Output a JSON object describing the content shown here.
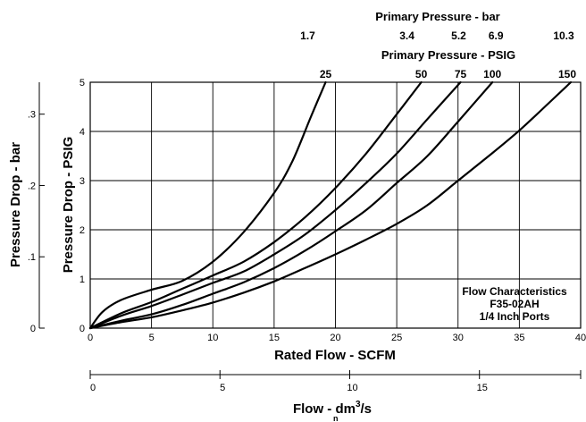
{
  "chart_data": {
    "type": "line",
    "title": "Flow Characteristics",
    "annotation": [
      "Flow Characteristics",
      "F35-02AH",
      "1/4 Inch Ports"
    ],
    "xlabel": "Rated Flow - SCFM",
    "ylabel": "Pressure Drop - PSIG",
    "xlim": [
      0,
      40
    ],
    "ylim": [
      0,
      5
    ],
    "x_ticks": [
      0,
      5,
      10,
      15,
      20,
      25,
      30,
      35,
      40
    ],
    "y_ticks": [
      0,
      1,
      2,
      3,
      4,
      5
    ],
    "grid": true,
    "secondary_y": {
      "label": "Pressure Drop - bar",
      "ticks": [
        {
          "value": 0,
          "label": "0"
        },
        {
          "value": 0.1,
          "label": ".1"
        },
        {
          "value": 0.2,
          "label": ".2"
        },
        {
          "value": 0.3,
          "label": ".3"
        }
      ]
    },
    "secondary_x": {
      "label": "Flow - dm³/s",
      "label_main": "Flow - dm",
      "label_sup": "3",
      "label_tail": "/s",
      "label_sub": "n",
      "ticks": [
        0,
        5,
        10,
        15
      ],
      "range": [
        0,
        18.9
      ]
    },
    "top_axis_psig": {
      "label": "Primary Pressure - PSIG",
      "ticks": [
        "25",
        "50",
        "75",
        "100",
        "150"
      ]
    },
    "top_axis_bar": {
      "label": "Primary Pressure - bar",
      "ticks": [
        "1.7",
        "3.4",
        "5.2",
        "6.9",
        "10.3"
      ]
    },
    "series": [
      {
        "primary_psig": "25",
        "primary_bar": "1.7",
        "x": [
          0,
          1,
          2.5,
          5,
          7.5,
          10,
          12.5,
          15,
          16.5,
          18,
          19.2
        ],
        "y": [
          0,
          0.33,
          0.57,
          0.78,
          0.96,
          1.35,
          1.95,
          2.75,
          3.4,
          4.3,
          5.0
        ]
      },
      {
        "primary_psig": "50",
        "primary_bar": "3.4",
        "x": [
          0,
          2.5,
          5,
          7.5,
          10,
          12.5,
          15,
          17.5,
          20,
          22.5,
          25,
          27
        ],
        "y": [
          0,
          0.3,
          0.53,
          0.8,
          1.07,
          1.35,
          1.75,
          2.25,
          2.85,
          3.55,
          4.35,
          5.0
        ]
      },
      {
        "primary_psig": "75",
        "primary_bar": "5.2",
        "x": [
          0,
          2.5,
          5,
          7.5,
          10,
          12.5,
          15,
          17.5,
          20,
          22.5,
          25,
          27.5,
          30.2
        ],
        "y": [
          0,
          0.25,
          0.45,
          0.68,
          0.92,
          1.15,
          1.5,
          1.9,
          2.4,
          2.95,
          3.55,
          4.25,
          5.0
        ]
      },
      {
        "primary_psig": "100",
        "primary_bar": "6.9",
        "x": [
          0,
          2.5,
          5,
          7.5,
          10,
          12.5,
          15,
          17.5,
          20,
          22.5,
          25,
          27.5,
          30,
          32.8
        ],
        "y": [
          0,
          0.15,
          0.28,
          0.47,
          0.7,
          0.93,
          1.22,
          1.57,
          1.97,
          2.4,
          2.95,
          3.5,
          4.2,
          5.0
        ]
      },
      {
        "primary_psig": "150",
        "primary_bar": "10.3",
        "x": [
          0,
          2.5,
          5,
          7.5,
          10,
          12.5,
          15,
          17.5,
          20,
          22.5,
          25,
          27.5,
          30,
          32.5,
          35,
          37.5,
          39.2
        ],
        "y": [
          0,
          0.12,
          0.22,
          0.36,
          0.52,
          0.72,
          0.95,
          1.22,
          1.5,
          1.8,
          2.12,
          2.5,
          3.0,
          3.5,
          4.02,
          4.6,
          5.0
        ]
      }
    ]
  }
}
